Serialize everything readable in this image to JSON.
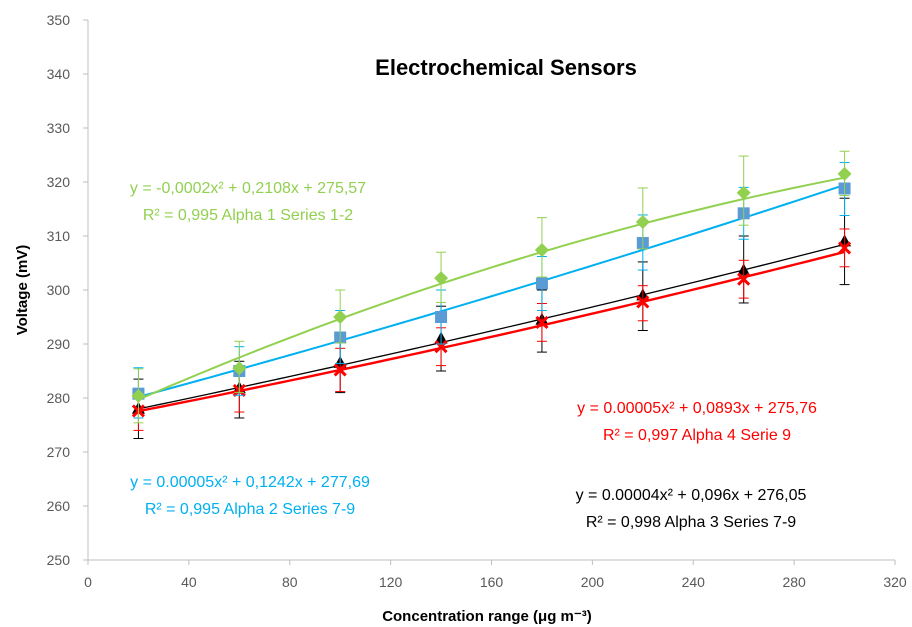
{
  "chart_data": {
    "type": "line",
    "title": "Electrochemical Sensors",
    "xlabel": "Concentration range (μg m⁻³)",
    "ylabel": "Voltage (mV)",
    "xlim": [
      0,
      320
    ],
    "ylim": [
      250,
      350
    ],
    "x_ticks": [
      "0",
      "40",
      "80",
      "120",
      "160",
      "200",
      "240",
      "280",
      "320"
    ],
    "y_ticks": [
      "250",
      "260",
      "270",
      "280",
      "290",
      "300",
      "310",
      "320",
      "330",
      "340",
      "350"
    ],
    "grid": false,
    "x": [
      20,
      60,
      100,
      140,
      180,
      220,
      260,
      300
    ],
    "series": [
      {
        "color": "#92D050",
        "marker": "diamond",
        "values": [
          280.4,
          285.5,
          295.0,
          302.2,
          307.4,
          312.6,
          318.0,
          321.5
        ],
        "error_plus": [
          5.0,
          5.0,
          5.0,
          4.8,
          6.0,
          6.3,
          6.8,
          4.2
        ],
        "error_minus": [
          5.0,
          4.5,
          4.8,
          4.5,
          5.0,
          5.0,
          6.0,
          4.0
        ],
        "fit": {
          "a": -0.0002,
          "b": 0.2108,
          "c": 275.57
        },
        "equation": "y = -0,0002x² + 0,2108x + 275,57",
        "r2": "R² = 0,995   Alpha 1  Series 1-2"
      },
      {
        "color": "#00B0F0",
        "marker": "square",
        "values": [
          280.8,
          285.0,
          291.2,
          295.0,
          301.2,
          308.7,
          314.2,
          318.8
        ],
        "error_plus": [
          4.8,
          4.5,
          5.0,
          5.0,
          5.0,
          5.2,
          4.8,
          4.8
        ],
        "error_minus": [
          4.5,
          4.5,
          4.8,
          5.0,
          5.0,
          5.0,
          4.8,
          5.0
        ],
        "fit": {
          "a": 5e-05,
          "b": 0.1242,
          "c": 277.69
        },
        "equation": "y = 0.00005x² + 0,1242x + 277,69",
        "r2": "R² = 0,995   Alpha 2 Series 7-9"
      },
      {
        "color": "#000000",
        "marker": "triangle",
        "values": [
          278.0,
          281.8,
          286.5,
          291.0,
          294.5,
          299.0,
          303.6,
          309.0
        ],
        "error_plus": [
          5.5,
          5.0,
          5.5,
          6.0,
          5.5,
          6.2,
          6.4,
          8.0
        ],
        "error_minus": [
          5.5,
          5.5,
          5.5,
          6.0,
          6.0,
          6.5,
          6.0,
          8.0
        ],
        "fit": {
          "a": 4e-05,
          "b": 0.096,
          "c": 276.05
        },
        "equation": "y = 0.00004x² + 0,096x + 276,05",
        "r2": "R² = 0,998   Alpha 3 Series 7-9"
      },
      {
        "color": "#FF0000",
        "marker": "x",
        "values": [
          277.6,
          281.4,
          285.2,
          289.5,
          294.0,
          297.8,
          302.0,
          307.8
        ],
        "error_plus": [
          3.6,
          4.0,
          4.0,
          3.5,
          3.5,
          3.0,
          3.5,
          3.5
        ],
        "error_minus": [
          3.6,
          4.0,
          4.0,
          3.5,
          3.5,
          3.5,
          3.5,
          3.5
        ],
        "fit": {
          "a": 5e-05,
          "b": 0.0893,
          "c": 275.76
        },
        "equation": "y = 0.00005x² + 0,0893x + 275,76",
        "r2": "R² = 0,997   Alpha 4 Serie 9"
      }
    ]
  }
}
